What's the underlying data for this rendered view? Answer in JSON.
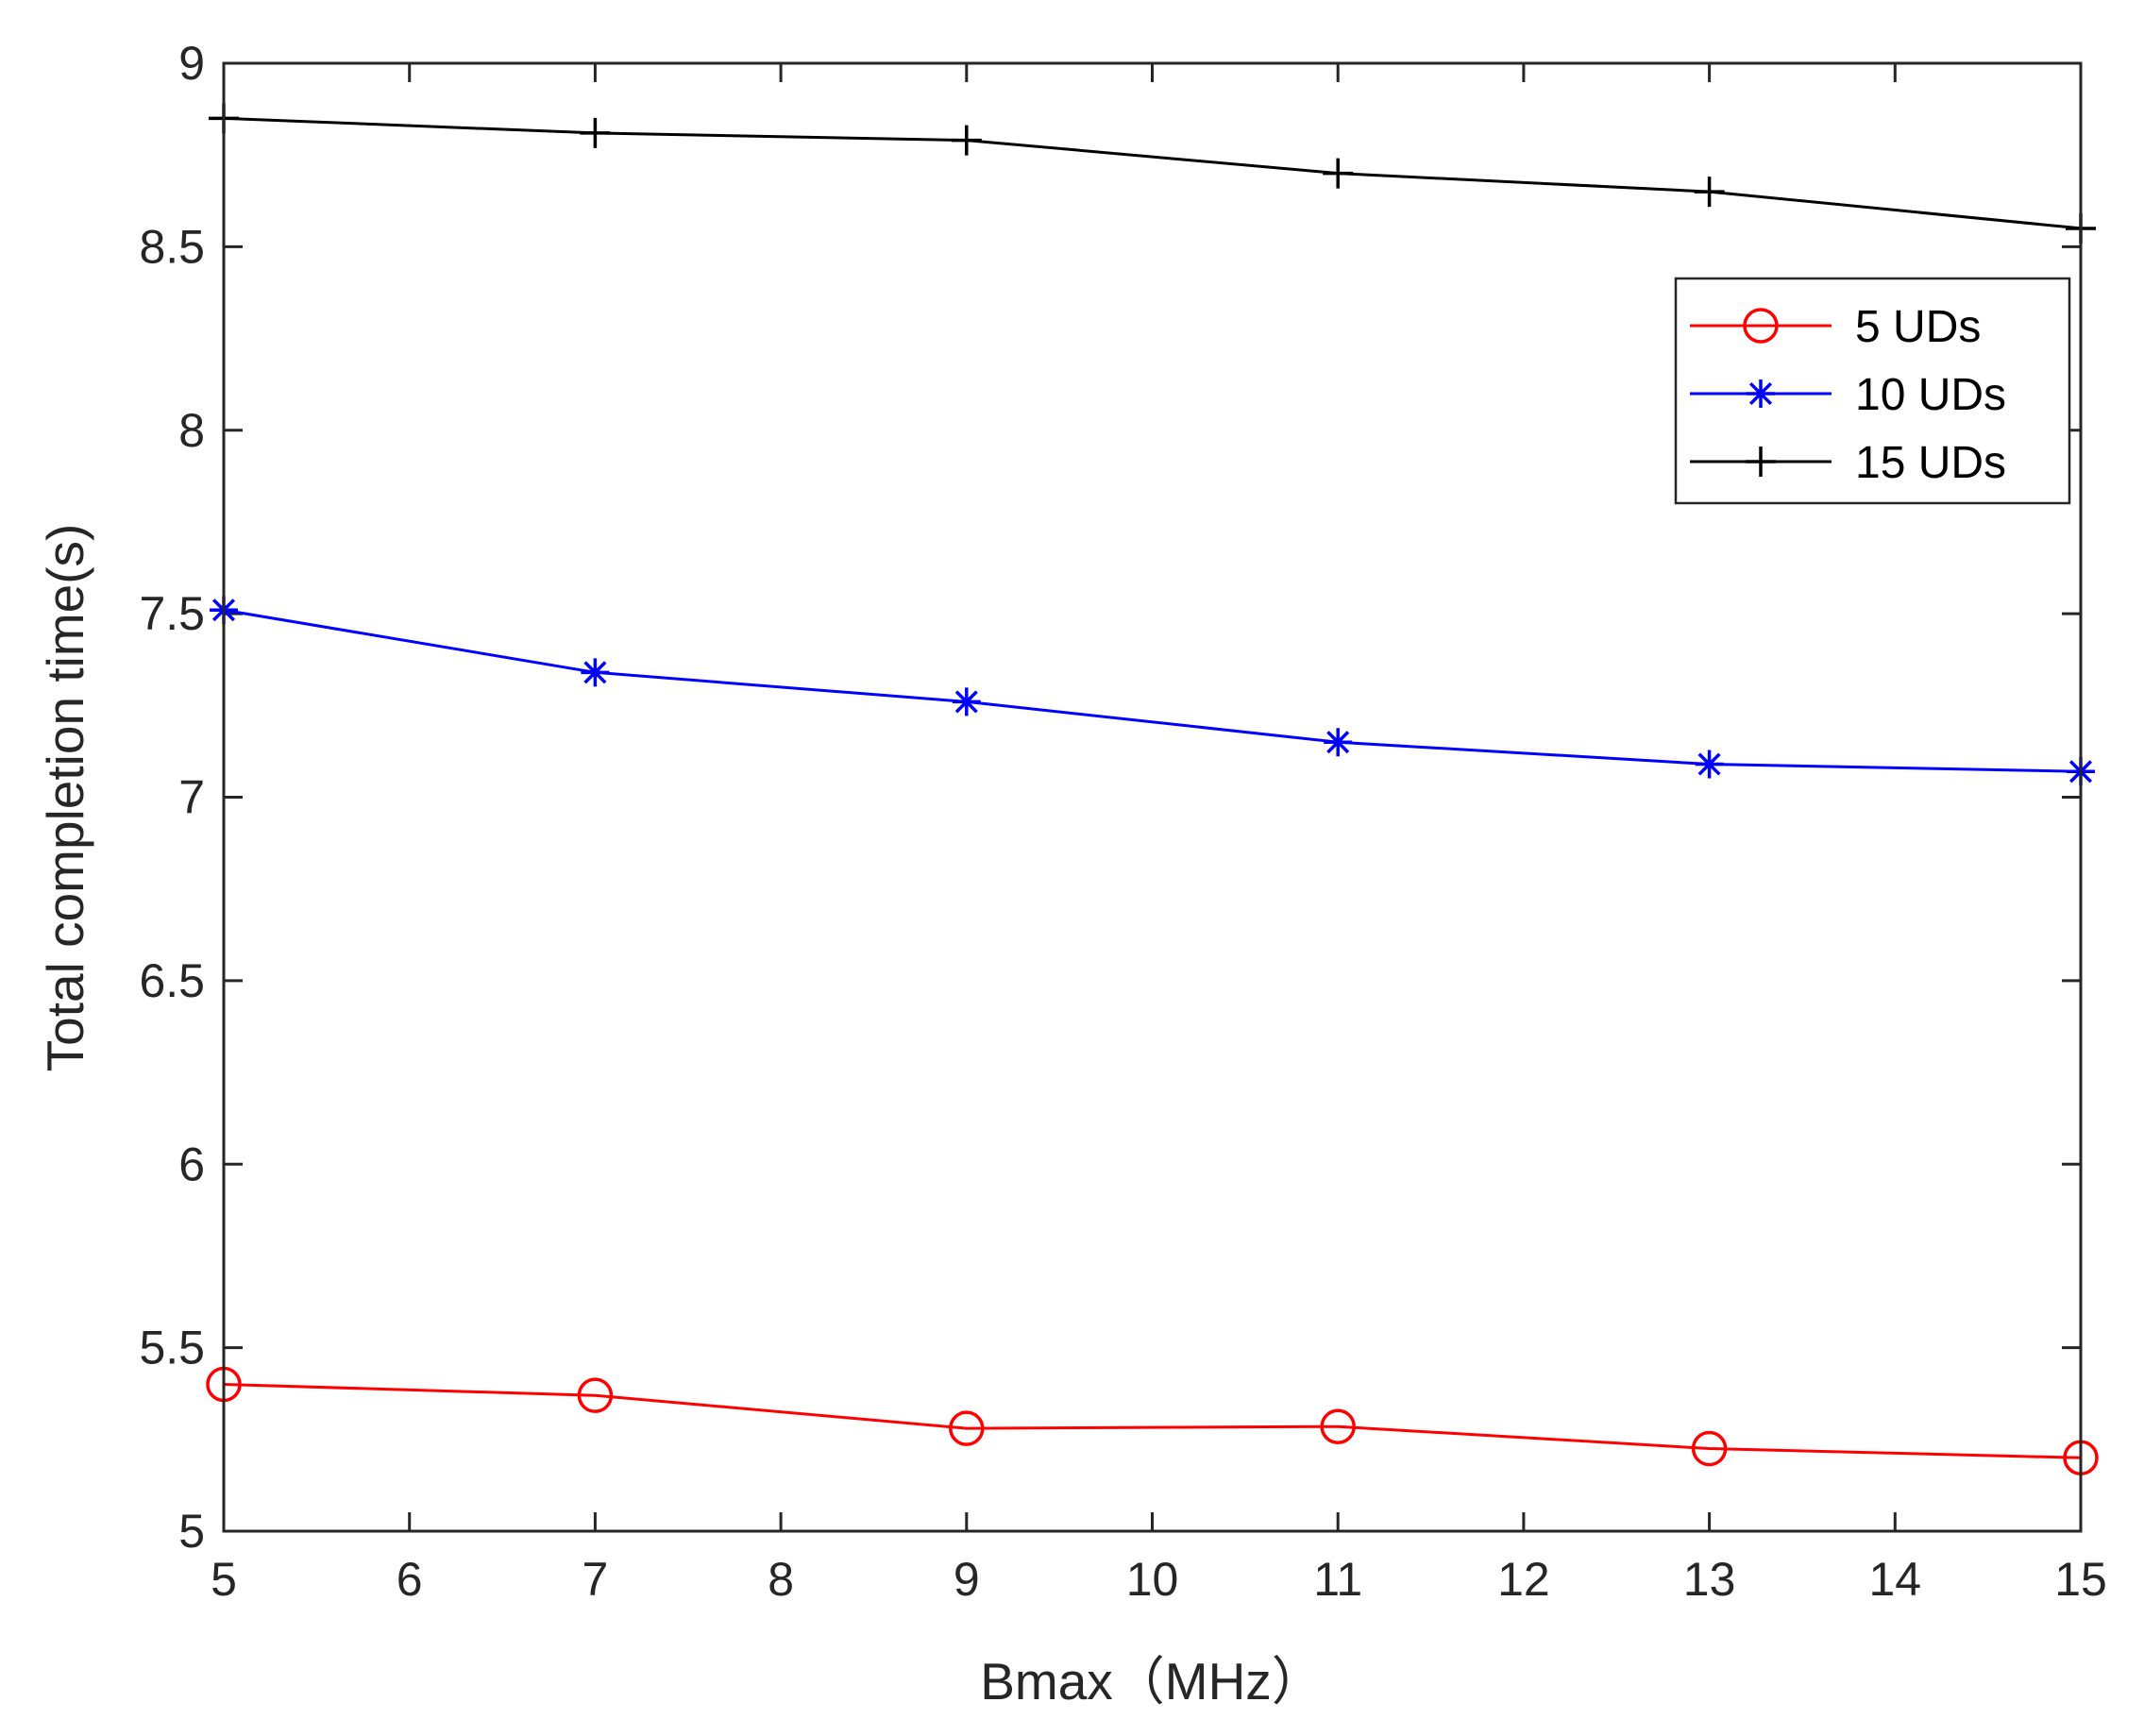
{
  "chart_data": {
    "type": "line",
    "title": "",
    "xlabel": "Bmax（MHz）",
    "ylabel": "Total completion time(s)",
    "xlim": [
      5,
      15
    ],
    "ylim": [
      5,
      9
    ],
    "xticks": [
      5,
      6,
      7,
      8,
      9,
      10,
      11,
      12,
      13,
      14,
      15
    ],
    "xtick_labels": [
      "5",
      "6",
      "7",
      "8",
      "9",
      "10",
      "11",
      "12",
      "13",
      "14",
      "15"
    ],
    "yticks": [
      5,
      5.5,
      6,
      6.5,
      7,
      7.5,
      8,
      8.5,
      9
    ],
    "ytick_labels": [
      "5",
      "5.5",
      "6",
      "6.5",
      "7",
      "7.5",
      "8",
      "8.5",
      "9"
    ],
    "grid": false,
    "legend_position": "top-right",
    "x": [
      5,
      7,
      9,
      11,
      13,
      15
    ],
    "series": [
      {
        "name": "5 UDs",
        "color": "#ff0000",
        "marker": "circle",
        "values": [
          5.4,
          5.37,
          5.28,
          5.285,
          5.225,
          5.2
        ]
      },
      {
        "name": "10 UDs",
        "color": "#0000ff",
        "marker": "asterisk",
        "values": [
          7.51,
          7.34,
          7.26,
          7.15,
          7.09,
          7.07
        ]
      },
      {
        "name": "15 UDs",
        "color": "#000000",
        "marker": "plus",
        "values": [
          8.85,
          8.81,
          8.79,
          8.7,
          8.65,
          8.55
        ]
      }
    ]
  }
}
